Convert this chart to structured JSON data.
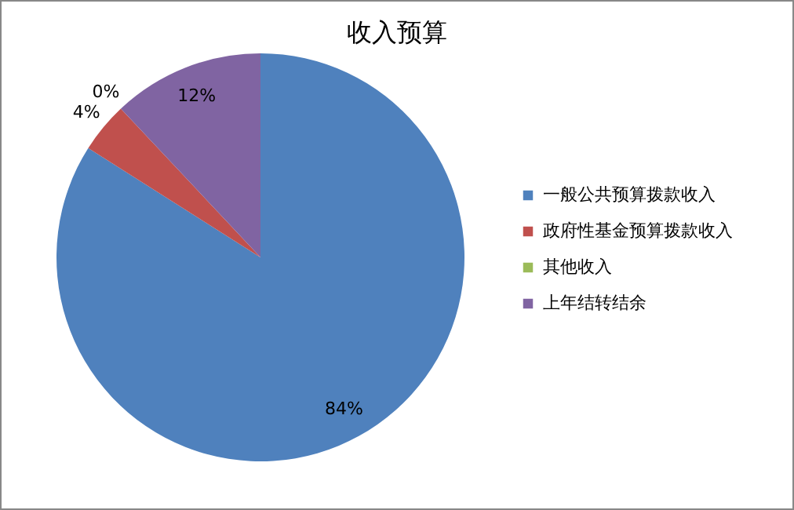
{
  "chart_data": {
    "type": "pie",
    "title": "收入预算",
    "categories": [
      "一般公共预算拨款收入",
      "政府性基金预算拨款收入",
      "其他收入",
      "上年结转结余"
    ],
    "values": [
      84,
      4,
      0,
      12
    ],
    "colors": [
      "#4f81bd",
      "#c0504d",
      "#9bbb59",
      "#8064a2"
    ],
    "value_labels": [
      "84%",
      "4%",
      "0%",
      "12%"
    ],
    "legend": "right"
  }
}
